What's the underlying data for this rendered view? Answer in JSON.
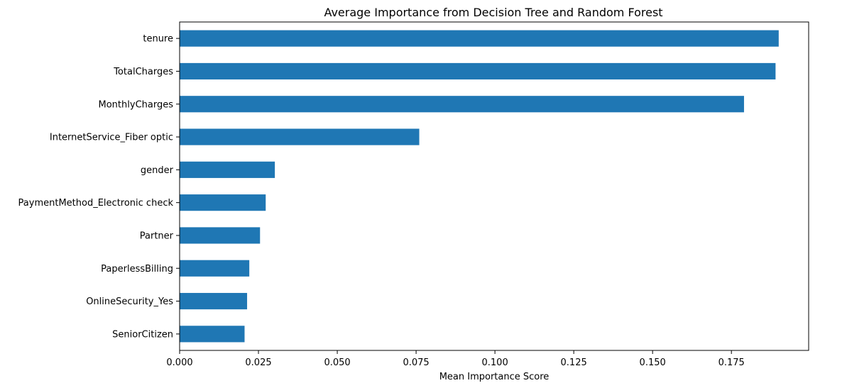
{
  "chart_data": {
    "type": "bar",
    "orientation": "horizontal",
    "title": "Average Importance from Decision Tree and Random Forest",
    "xlabel": "Mean Importance Score",
    "ylabel": "",
    "categories": [
      "tenure",
      "TotalCharges",
      "MonthlyCharges",
      "InternetService_Fiber optic",
      "gender",
      "PaymentMethod_Electronic check",
      "Partner",
      "PaperlessBilling",
      "OnlineSecurity_Yes",
      "SeniorCitizen"
    ],
    "values": [
      0.19,
      0.189,
      0.179,
      0.076,
      0.0302,
      0.0273,
      0.0255,
      0.0221,
      0.0214,
      0.0206
    ],
    "xlim": [
      0,
      0.1995
    ],
    "xticks": [
      0.0,
      0.025,
      0.05,
      0.075,
      0.1,
      0.125,
      0.15,
      0.175
    ],
    "xtick_labels": [
      "0.000",
      "0.025",
      "0.050",
      "0.075",
      "0.100",
      "0.125",
      "0.150",
      "0.175"
    ],
    "grid": false,
    "legend": "none",
    "bar_color": "#1f77b4"
  }
}
